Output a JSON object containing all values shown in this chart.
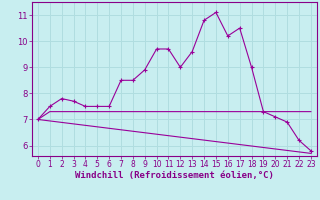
{
  "xlabel": "Windchill (Refroidissement éolien,°C)",
  "ylabel": "",
  "bg_color": "#c8eef0",
  "grid_color": "#b0dde0",
  "line_color": "#990099",
  "xlim": [
    -0.5,
    23.5
  ],
  "ylim": [
    5.6,
    11.5
  ],
  "xticks": [
    0,
    1,
    2,
    3,
    4,
    5,
    6,
    7,
    8,
    9,
    10,
    11,
    12,
    13,
    14,
    15,
    16,
    17,
    18,
    19,
    20,
    21,
    22,
    23
  ],
  "yticks": [
    6,
    7,
    8,
    9,
    10,
    11
  ],
  "line1_x": [
    0,
    1,
    2,
    3,
    4,
    5,
    6,
    7,
    8,
    9,
    10,
    11,
    12,
    13,
    14,
    15,
    16,
    17,
    18,
    19,
    20,
    21,
    22,
    23
  ],
  "line1_y": [
    7.0,
    7.5,
    7.8,
    7.7,
    7.5,
    7.5,
    7.5,
    8.5,
    8.5,
    8.9,
    9.7,
    9.7,
    9.0,
    9.6,
    10.8,
    11.1,
    10.2,
    10.5,
    9.0,
    7.3,
    7.1,
    6.9,
    6.2,
    5.8
  ],
  "line2_x": [
    0,
    23
  ],
  "line2_y": [
    7.0,
    5.7
  ],
  "line3_x": [
    0,
    1,
    2,
    5,
    10,
    19,
    20,
    23
  ],
  "line3_y": [
    7.0,
    7.3,
    7.3,
    7.3,
    7.3,
    7.3,
    7.3,
    7.3
  ],
  "font_color": "#880088",
  "tick_fontsize": 5.5,
  "label_fontsize": 6.5
}
